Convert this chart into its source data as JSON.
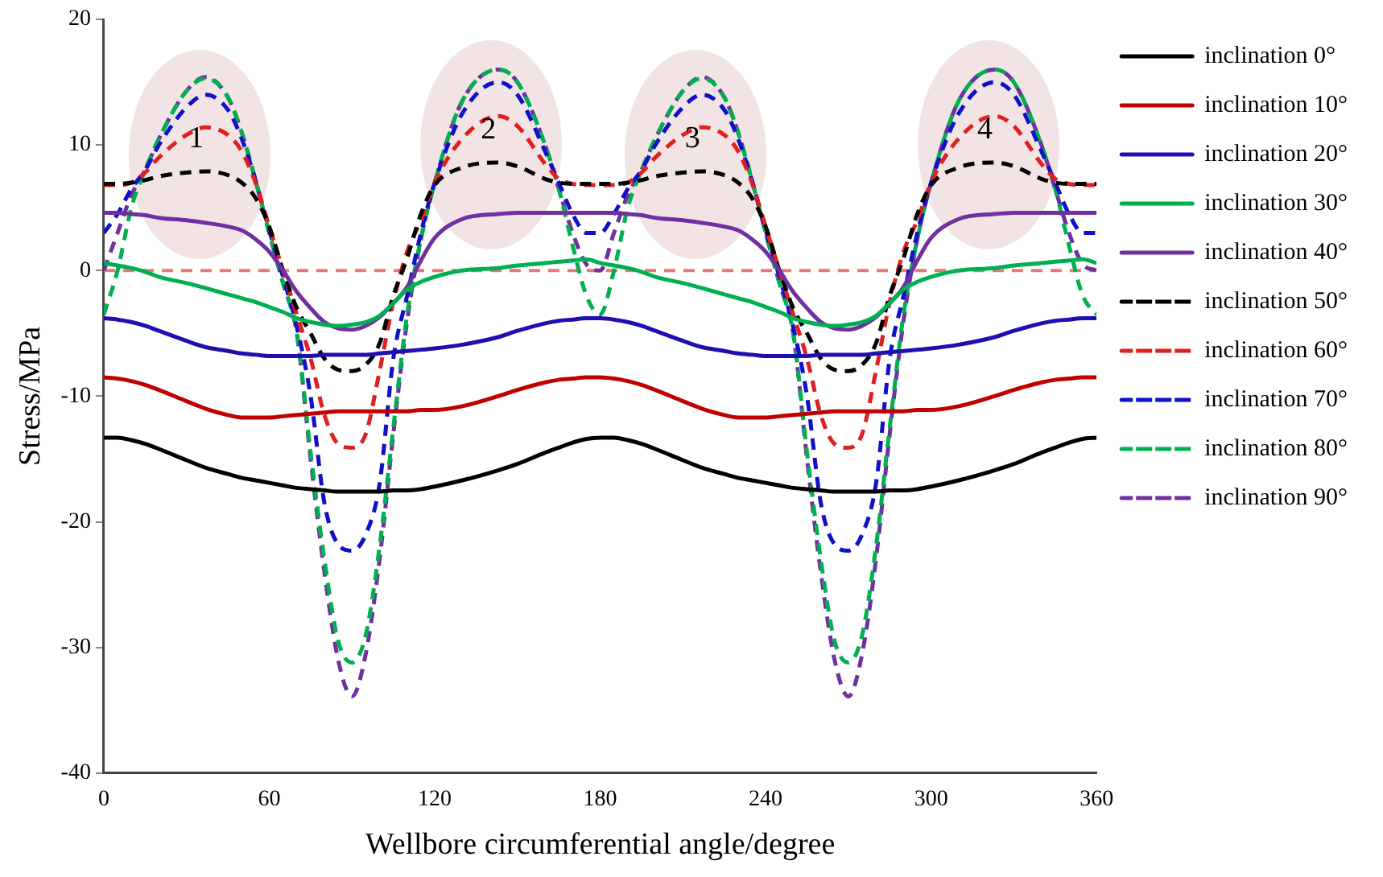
{
  "chart_data": {
    "type": "line",
    "xlabel": "Wellbore circumferential angle/degree",
    "ylabel": "Stress/MPa",
    "x": [
      0,
      5,
      10,
      15,
      20,
      30,
      37,
      45,
      50,
      55,
      60,
      65,
      70,
      75,
      80,
      85,
      90,
      95,
      100,
      105,
      110,
      115,
      120,
      130,
      143,
      150,
      160,
      165,
      170,
      175,
      180,
      185,
      190,
      195,
      200,
      210,
      217,
      225,
      230,
      235,
      240,
      245,
      250,
      255,
      260,
      265,
      270,
      275,
      280,
      285,
      290,
      295,
      300,
      310,
      323,
      330,
      340,
      345,
      350,
      355,
      360
    ],
    "xlim": [
      0,
      360
    ],
    "xticks": [
      0,
      60,
      120,
      180,
      240,
      300,
      360
    ],
    "ylim": [
      -40,
      20
    ],
    "yticks": [
      -40,
      -30,
      -20,
      -10,
      0,
      10,
      20
    ],
    "grid": false,
    "legend": "right",
    "marker": "none",
    "series": [
      {
        "name": "inclination 0°",
        "color": "#000000",
        "line_style": "solid",
        "values": [
          -13.3,
          -13.3,
          -13.5,
          -13.8,
          -14.2,
          -15.1,
          -15.7,
          -16.2,
          -16.5,
          -16.7,
          -16.9,
          -17.1,
          -17.3,
          -17.4,
          -17.5,
          -17.6,
          -17.6,
          -17.6,
          -17.6,
          -17.5,
          -17.5,
          -17.4,
          -17.2,
          -16.7,
          -15.9,
          -15.4,
          -14.5,
          -14.1,
          -13.7,
          -13.4,
          -13.3,
          -13.3,
          -13.5,
          -13.8,
          -14.2,
          -15.1,
          -15.7,
          -16.2,
          -16.5,
          -16.7,
          -16.9,
          -17.1,
          -17.3,
          -17.4,
          -17.5,
          -17.6,
          -17.6,
          -17.6,
          -17.6,
          -17.5,
          -17.5,
          -17.4,
          -17.2,
          -16.7,
          -15.9,
          -15.4,
          -14.5,
          -14.1,
          -13.7,
          -13.4,
          -13.3
        ]
      },
      {
        "name": "inclination 10°",
        "color": "#c00000",
        "line_style": "solid",
        "values": [
          -8.5,
          -8.6,
          -8.8,
          -9.1,
          -9.5,
          -10.4,
          -11.0,
          -11.5,
          -11.7,
          -11.7,
          -11.7,
          -11.6,
          -11.5,
          -11.4,
          -11.3,
          -11.2,
          -11.2,
          -11.2,
          -11.2,
          -11.2,
          -11.2,
          -11.1,
          -11.1,
          -10.8,
          -10.0,
          -9.5,
          -8.9,
          -8.7,
          -8.6,
          -8.5,
          -8.5,
          -8.6,
          -8.8,
          -9.1,
          -9.5,
          -10.4,
          -11.0,
          -11.5,
          -11.7,
          -11.7,
          -11.7,
          -11.6,
          -11.5,
          -11.4,
          -11.3,
          -11.2,
          -11.2,
          -11.2,
          -11.2,
          -11.2,
          -11.2,
          -11.1,
          -11.1,
          -10.8,
          -10.0,
          -9.5,
          -8.9,
          -8.7,
          -8.6,
          -8.5,
          -8.5
        ]
      },
      {
        "name": "inclination 20°",
        "color": "#1f0fb0",
        "line_style": "solid",
        "values": [
          -3.8,
          -3.9,
          -4.1,
          -4.4,
          -4.8,
          -5.6,
          -6.1,
          -6.4,
          -6.6,
          -6.7,
          -6.8,
          -6.8,
          -6.8,
          -6.8,
          -6.7,
          -6.7,
          -6.7,
          -6.7,
          -6.6,
          -6.5,
          -6.4,
          -6.3,
          -6.2,
          -5.9,
          -5.3,
          -4.8,
          -4.2,
          -4.0,
          -3.9,
          -3.8,
          -3.8,
          -3.9,
          -4.1,
          -4.4,
          -4.8,
          -5.6,
          -6.1,
          -6.4,
          -6.6,
          -6.7,
          -6.8,
          -6.8,
          -6.8,
          -6.8,
          -6.7,
          -6.7,
          -6.7,
          -6.7,
          -6.6,
          -6.5,
          -6.4,
          -6.3,
          -6.2,
          -5.9,
          -5.3,
          -4.8,
          -4.2,
          -4.0,
          -3.9,
          -3.8,
          -3.8
        ]
      },
      {
        "name": "inclination 30°",
        "color": "#00b050",
        "line_style": "solid",
        "values": [
          0.6,
          0.4,
          0.2,
          -0.1,
          -0.5,
          -1.0,
          -1.4,
          -1.9,
          -2.2,
          -2.5,
          -2.9,
          -3.3,
          -3.8,
          -4.1,
          -4.3,
          -4.4,
          -4.3,
          -4.1,
          -3.6,
          -2.6,
          -1.5,
          -0.9,
          -0.5,
          0,
          0.2,
          0.4,
          0.6,
          0.7,
          0.8,
          0.9,
          0.6,
          0.4,
          0.2,
          -0.1,
          -0.5,
          -1.0,
          -1.4,
          -1.9,
          -2.2,
          -2.5,
          -2.9,
          -3.3,
          -3.8,
          -4.1,
          -4.3,
          -4.4,
          -4.3,
          -4.1,
          -3.6,
          -2.6,
          -1.5,
          -0.9,
          -0.5,
          0,
          0.2,
          0.4,
          0.6,
          0.7,
          0.8,
          0.9,
          0.6
        ]
      },
      {
        "name": "inclination 40°",
        "color": "#7030a0",
        "line_style": "solid",
        "values": [
          4.6,
          4.6,
          4.5,
          4.4,
          4.2,
          4.0,
          3.8,
          3.5,
          3.2,
          2.5,
          1.5,
          0,
          -1.7,
          -3.0,
          -4.1,
          -4.6,
          -4.7,
          -4.4,
          -3.7,
          -2.6,
          -1.3,
          0.8,
          2.6,
          4.1,
          4.5,
          4.6,
          4.6,
          4.6,
          4.6,
          4.6,
          4.6,
          4.6,
          4.5,
          4.4,
          4.2,
          4.0,
          3.8,
          3.5,
          3.2,
          2.5,
          1.5,
          0,
          -1.7,
          -3.0,
          -4.1,
          -4.6,
          -4.7,
          -4.4,
          -3.7,
          -2.6,
          -1.3,
          0.8,
          2.6,
          4.1,
          4.5,
          4.6,
          4.6,
          4.6,
          4.6,
          4.6,
          4.6
        ]
      },
      {
        "name": "inclination 50°",
        "color": "#000000",
        "line_style": "dashed",
        "values": [
          6.9,
          6.9,
          7.0,
          7.2,
          7.5,
          7.8,
          7.9,
          7.6,
          7.0,
          5.8,
          3.5,
          0,
          -3,
          -5,
          -7,
          -7.9,
          -8.0,
          -7.5,
          -5.8,
          -2,
          1,
          4.5,
          6.8,
          8.2,
          8.6,
          8.3,
          7.3,
          7.0,
          6.9,
          6.9,
          6.9,
          6.9,
          7.0,
          7.2,
          7.5,
          7.8,
          7.9,
          7.6,
          7.0,
          5.8,
          3.5,
          0,
          -3,
          -5,
          -7,
          -7.9,
          -8.0,
          -7.5,
          -5.8,
          -2,
          1,
          4.5,
          6.8,
          8.2,
          8.6,
          8.3,
          7.3,
          7.0,
          6.9,
          6.9,
          6.9
        ]
      },
      {
        "name": "inclination 60°",
        "color": "#e02020",
        "line_style": "dashed",
        "values": [
          6.8,
          6.8,
          7.0,
          7.8,
          9,
          10.8,
          11.4,
          10.8,
          9.5,
          7,
          3.5,
          0,
          -3.5,
          -7,
          -11.5,
          -13.8,
          -14.1,
          -13,
          -8,
          -2.5,
          1.5,
          4,
          7,
          10.5,
          12.3,
          11.5,
          8.5,
          7.3,
          6.9,
          6.8,
          6.8,
          6.8,
          7.0,
          7.8,
          9,
          10.8,
          11.4,
          10.8,
          9.5,
          7,
          3.5,
          0,
          -3.5,
          -7,
          -11.5,
          -13.8,
          -14.1,
          -13,
          -8,
          -2.5,
          1.5,
          4,
          7,
          10.5,
          12.3,
          11.5,
          8.5,
          7.3,
          6.9,
          6.8,
          6.8
        ]
      },
      {
        "name": "inclination 70°",
        "color": "#1010c8",
        "line_style": "dashed",
        "values": [
          3.0,
          4.5,
          6.5,
          8,
          10,
          13,
          14.0,
          12.8,
          10.5,
          7.2,
          3.2,
          -0.5,
          -4.5,
          -10,
          -18.5,
          -21.8,
          -22.3,
          -21,
          -17,
          -7,
          -2,
          3,
          7,
          12.5,
          15.0,
          14,
          9.5,
          7,
          4.5,
          3.0,
          3.0,
          4.5,
          6.5,
          8,
          10,
          13,
          14.0,
          12.8,
          10.5,
          7.2,
          3.2,
          -0.5,
          -4.5,
          -10,
          -18.5,
          -21.8,
          -22.3,
          -21,
          -17,
          -7,
          -2,
          3,
          7,
          12.5,
          15.0,
          14,
          9.5,
          7,
          4.5,
          3.0,
          3.0
        ]
      },
      {
        "name": "inclination 80°",
        "color": "#00b050",
        "line_style": "dashed",
        "values": [
          -3.5,
          0,
          5,
          8,
          10.5,
          14.3,
          15.3,
          13.8,
          11,
          7.2,
          3,
          -1,
          -5,
          -14.5,
          -23,
          -29.5,
          -31.2,
          -29,
          -22,
          -12.5,
          -3.5,
          2.5,
          7,
          13.5,
          16.0,
          15,
          10,
          6.5,
          2,
          -2,
          -3.5,
          0,
          5,
          8,
          10.5,
          14.3,
          15.3,
          13.8,
          11,
          7.2,
          3,
          -1,
          -5,
          -14.5,
          -23,
          -29.5,
          -31.2,
          -29,
          -22,
          -12.5,
          -3.5,
          2.5,
          7,
          13.5,
          16.0,
          15,
          10,
          6.5,
          2,
          -2,
          -3.5
        ]
      },
      {
        "name": "inclination 90°",
        "color": "#7030a0",
        "line_style": "dashed",
        "values": [
          0,
          3,
          6,
          8,
          10.5,
          14.3,
          15.4,
          13.8,
          11,
          7.2,
          3,
          -1,
          -5,
          -15,
          -24,
          -31,
          -33.9,
          -30.5,
          -23,
          -13,
          -4,
          2.5,
          7,
          13.5,
          16.0,
          15,
          10,
          6.5,
          3,
          0.5,
          0,
          3,
          6,
          8,
          10.5,
          14.3,
          15.4,
          13.8,
          11,
          7.2,
          3,
          -1,
          -5,
          -15,
          -24,
          -31,
          -33.9,
          -30.5,
          -23,
          -13,
          -4,
          2.5,
          7,
          13.5,
          16.0,
          15,
          10,
          6.5,
          3,
          0.5,
          0
        ]
      }
    ],
    "ref_lines": [
      {
        "axis": "y",
        "value": 0,
        "color": "#e87878",
        "line_style": "dashed"
      }
    ],
    "annotations": [
      "1",
      "2",
      "3",
      "4"
    ]
  }
}
